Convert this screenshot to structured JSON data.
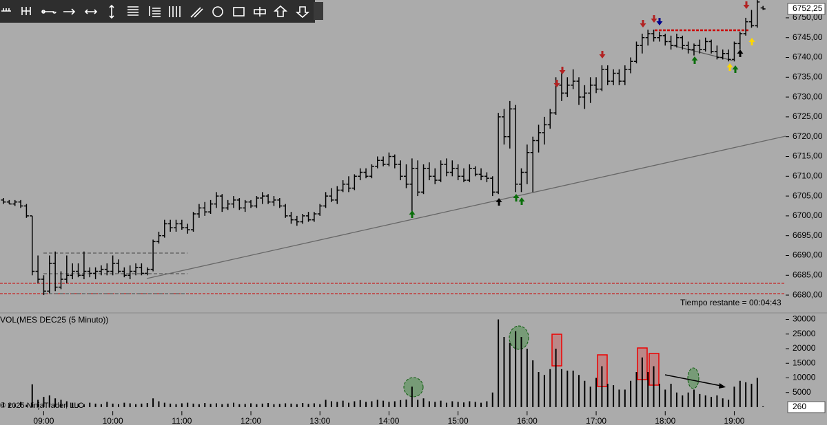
{
  "chart_data": {
    "type": "ohlc",
    "volume_title": "VOL(MES DEC25 (5 Minuto))",
    "timer": "Tiempo restante = 00:04:43",
    "copyright": "© 2025 NinjaTrader, LLC",
    "last_label": "6752,25",
    "x": [
      "08:25",
      "08:30",
      "08:35",
      "08:40",
      "08:45",
      "08:50",
      "08:55",
      "09:00",
      "09:05",
      "09:10",
      "09:15",
      "09:20",
      "09:25",
      "09:30",
      "09:35",
      "09:40",
      "09:45",
      "09:50",
      "09:55",
      "10:00",
      "10:05",
      "10:10",
      "10:15",
      "10:20",
      "10:25",
      "10:30",
      "10:35",
      "10:40",
      "10:45",
      "10:50",
      "10:55",
      "11:00",
      "11:05",
      "11:10",
      "11:15",
      "11:20",
      "11:25",
      "11:30",
      "11:35",
      "11:40",
      "11:45",
      "11:50",
      "11:55",
      "12:00",
      "12:05",
      "12:10",
      "12:15",
      "12:20",
      "12:25",
      "12:30",
      "12:35",
      "12:40",
      "12:45",
      "12:50",
      "12:55",
      "13:00",
      "13:05",
      "13:10",
      "13:15",
      "13:20",
      "13:25",
      "13:30",
      "13:35",
      "13:40",
      "13:45",
      "13:50",
      "13:55",
      "14:00",
      "14:05",
      "14:10",
      "14:15",
      "14:20",
      "14:25",
      "14:30",
      "14:35",
      "14:40",
      "14:45",
      "14:50",
      "14:55",
      "15:00",
      "15:05",
      "15:10",
      "15:15",
      "15:20",
      "15:25",
      "15:30",
      "15:35",
      "15:40",
      "15:45",
      "15:50",
      "15:55",
      "16:00",
      "16:05",
      "16:10",
      "16:15",
      "16:20",
      "16:25",
      "16:30",
      "16:35",
      "16:40",
      "16:45",
      "16:50",
      "16:55",
      "17:00",
      "17:05",
      "17:10",
      "17:15",
      "17:20",
      "17:25",
      "17:30",
      "17:35",
      "17:40",
      "17:45",
      "17:50",
      "17:55",
      "18:00",
      "18:05",
      "18:10",
      "18:15",
      "18:20",
      "18:25",
      "18:30",
      "18:35",
      "18:40",
      "18:45",
      "18:50",
      "18:55",
      "19:00",
      "19:05",
      "19:10",
      "19:15",
      "19:20",
      "19:25"
    ],
    "ohlc": [
      [
        6704,
        6704.5,
        6703,
        6703.5
      ],
      [
        6703.5,
        6704,
        6703,
        6703
      ],
      [
        6703,
        6704,
        6702.5,
        6703.5
      ],
      [
        6703.5,
        6704,
        6702,
        6702.5
      ],
      [
        6702.5,
        6703,
        6699.5,
        6700
      ],
      [
        6700,
        6700,
        6685,
        6686
      ],
      [
        6686,
        6690,
        6683,
        6684
      ],
      [
        6684,
        6685,
        6680,
        6681
      ],
      [
        6681,
        6690,
        6680.5,
        6688
      ],
      [
        6688,
        6691,
        6681,
        6682
      ],
      [
        6682,
        6686,
        6681.5,
        6684
      ],
      [
        6684,
        6690,
        6683,
        6685
      ],
      [
        6685,
        6688,
        6684,
        6686
      ],
      [
        6686,
        6688,
        6684.5,
        6685
      ],
      [
        6685,
        6691,
        6684,
        6686
      ],
      [
        6686,
        6687,
        6684.5,
        6685.5
      ],
      [
        6685.5,
        6687,
        6684,
        6686
      ],
      [
        6686,
        6687.5,
        6685,
        6686.5
      ],
      [
        6686.5,
        6688,
        6685,
        6686
      ],
      [
        6686,
        6690,
        6685,
        6688
      ],
      [
        6688,
        6689,
        6685.5,
        6686
      ],
      [
        6686,
        6687,
        6684.5,
        6685
      ],
      [
        6685,
        6687.5,
        6684,
        6686
      ],
      [
        6686,
        6688,
        6685,
        6687
      ],
      [
        6687,
        6688,
        6685,
        6685.5
      ],
      [
        6685.5,
        6687,
        6685,
        6686.5
      ],
      [
        6686.5,
        6694,
        6686,
        6693.5
      ],
      [
        6693.5,
        6696,
        6693,
        6695
      ],
      [
        6695,
        6699,
        6694.5,
        6698
      ],
      [
        6698,
        6699,
        6696,
        6697
      ],
      [
        6697,
        6699,
        6696,
        6698
      ],
      [
        6698,
        6699,
        6696.5,
        6697
      ],
      [
        6697,
        6698,
        6695.5,
        6696.5
      ],
      [
        6696.5,
        6701,
        6696,
        6700.5
      ],
      [
        6700.5,
        6703,
        6699.5,
        6702
      ],
      [
        6702,
        6703.5,
        6700,
        6701
      ],
      [
        6701,
        6704,
        6700.5,
        6703
      ],
      [
        6703,
        6706,
        6702,
        6705
      ],
      [
        6705,
        6705.5,
        6701,
        6702
      ],
      [
        6702,
        6704,
        6701.5,
        6703
      ],
      [
        6703,
        6705,
        6702,
        6704
      ],
      [
        6704,
        6704.5,
        6701.5,
        6702
      ],
      [
        6702,
        6704,
        6701,
        6703.5
      ],
      [
        6703.5,
        6704,
        6702,
        6702.5
      ],
      [
        6702.5,
        6705,
        6702,
        6704.5
      ],
      [
        6704.5,
        6706,
        6703,
        6705
      ],
      [
        6705,
        6705.5,
        6703,
        6703.5
      ],
      [
        6703.5,
        6705,
        6702.5,
        6704
      ],
      [
        6704,
        6704.5,
        6702,
        6702.5
      ],
      [
        6702.5,
        6703,
        6699.5,
        6700
      ],
      [
        6700,
        6701,
        6698,
        6699
      ],
      [
        6699,
        6700,
        6697.5,
        6698.5
      ],
      [
        6698.5,
        6700.5,
        6698,
        6700
      ],
      [
        6700,
        6701,
        6698.5,
        6699
      ],
      [
        6699,
        6701,
        6698.5,
        6700.5
      ],
      [
        6700.5,
        6703,
        6700,
        6702.5
      ],
      [
        6702.5,
        6706,
        6702,
        6705
      ],
      [
        6705,
        6707,
        6703.5,
        6704
      ],
      [
        6704,
        6707.5,
        6703,
        6706.5
      ],
      [
        6706.5,
        6709,
        6706,
        6708
      ],
      [
        6708,
        6710,
        6706,
        6707
      ],
      [
        6707,
        6710.5,
        6706.5,
        6710
      ],
      [
        6710,
        6712,
        6709,
        6711
      ],
      [
        6711,
        6712,
        6709.5,
        6710
      ],
      [
        6710,
        6713,
        6709.5,
        6712.5
      ],
      [
        6712.5,
        6715,
        6712,
        6714
      ],
      [
        6714,
        6715,
        6712.5,
        6713
      ],
      [
        6713,
        6716,
        6712.5,
        6715
      ],
      [
        6715,
        6715.5,
        6712,
        6713
      ],
      [
        6713,
        6714,
        6709,
        6710
      ],
      [
        6710,
        6713,
        6707,
        6708
      ],
      [
        6708,
        6714.5,
        6701,
        6712
      ],
      [
        6712,
        6714,
        6705,
        6706
      ],
      [
        6706,
        6713,
        6705.5,
        6712
      ],
      [
        6712,
        6713.5,
        6709,
        6710
      ],
      [
        6710,
        6712,
        6708,
        6709
      ],
      [
        6709,
        6714,
        6708.5,
        6713
      ],
      [
        6713,
        6714.5,
        6710,
        6711
      ],
      [
        6711,
        6714,
        6710,
        6712
      ],
      [
        6712,
        6713,
        6709,
        6710
      ],
      [
        6710,
        6712,
        6708.5,
        6709
      ],
      [
        6709,
        6713,
        6708.5,
        6712
      ],
      [
        6712,
        6712.5,
        6710,
        6710.5
      ],
      [
        6710.5,
        6712,
        6709,
        6710
      ],
      [
        6710,
        6711,
        6708.5,
        6709.5
      ],
      [
        6709.5,
        6710,
        6705,
        6706
      ],
      [
        6706,
        6726,
        6705.5,
        6725
      ],
      [
        6725,
        6727,
        6718,
        6720
      ],
      [
        6720,
        6729,
        6717,
        6727
      ],
      [
        6727,
        6728,
        6706,
        6708
      ],
      [
        6708,
        6712,
        6706,
        6711
      ],
      [
        6711,
        6718,
        6708,
        6716
      ],
      [
        6716,
        6720,
        6706,
        6719
      ],
      [
        6719,
        6723,
        6716,
        6721
      ],
      [
        6721,
        6725,
        6718,
        6723
      ],
      [
        6723,
        6727,
        6722,
        6726
      ],
      [
        6726,
        6735,
        6725.5,
        6733
      ],
      [
        6733,
        6736,
        6729,
        6731
      ],
      [
        6731,
        6735,
        6730,
        6733
      ],
      [
        6733,
        6737,
        6732,
        6734
      ],
      [
        6734,
        6735,
        6728,
        6730
      ],
      [
        6730,
        6733,
        6727,
        6731
      ],
      [
        6731,
        6735,
        6728.5,
        6733
      ],
      [
        6733,
        6735,
        6731,
        6732
      ],
      [
        6732,
        6738,
        6731.5,
        6737
      ],
      [
        6737,
        6738,
        6733,
        6734
      ],
      [
        6734,
        6737,
        6733,
        6736
      ],
      [
        6736,
        6737,
        6733,
        6734
      ],
      [
        6734,
        6738,
        6733,
        6737
      ],
      [
        6737,
        6740,
        6736,
        6739
      ],
      [
        6739,
        6744,
        6738.5,
        6743
      ],
      [
        6743,
        6746,
        6741,
        6745
      ],
      [
        6745,
        6747,
        6743,
        6746
      ],
      [
        6746,
        6747,
        6744,
        6745
      ],
      [
        6745,
        6746.5,
        6744,
        6745.5
      ],
      [
        6745.5,
        6746,
        6743,
        6744
      ],
      [
        6744,
        6745.5,
        6742,
        6743
      ],
      [
        6743,
        6746,
        6742.5,
        6745
      ],
      [
        6745,
        6745.5,
        6742,
        6743
      ],
      [
        6743,
        6744,
        6741,
        6742
      ],
      [
        6742,
        6743.5,
        6740.5,
        6743
      ],
      [
        6743,
        6744.5,
        6741,
        6742
      ],
      [
        6742,
        6745,
        6741.5,
        6744
      ],
      [
        6744,
        6744.5,
        6741,
        6741.5
      ],
      [
        6741.5,
        6743,
        6739.5,
        6740
      ],
      [
        6740,
        6742,
        6739.5,
        6741
      ],
      [
        6741,
        6742,
        6739,
        6739.5
      ],
      [
        6739.5,
        6744,
        6739,
        6743.5
      ],
      [
        6743.5,
        6746.5,
        6742,
        6746
      ],
      [
        6746,
        6750,
        6745.5,
        6749
      ],
      [
        6749,
        6752,
        6747.5,
        6748
      ],
      [
        6748,
        6756,
        6747.5,
        6754
      ],
      [
        6752.5,
        6753,
        6752,
        6752.25
      ]
    ],
    "volume": [
      1500,
      1200,
      1000,
      1800,
      800,
      7800,
      2500,
      3500,
      4000,
      3000,
      2500,
      2000,
      1500,
      1200,
      1000,
      1500,
      1200,
      1000,
      1800,
      1200,
      1000,
      1500,
      1300,
      1000,
      1200,
      1400,
      3000,
      2000,
      1500,
      1200,
      1000,
      1300,
      1500,
      1200,
      1000,
      1400,
      1100,
      1300,
      1000,
      1200,
      1500,
      1000,
      1100,
      1300,
      1000,
      1200,
      1400,
      1000,
      1100,
      1300,
      1200,
      1000,
      1400,
      1100,
      1300,
      1000,
      2500,
      2000,
      1800,
      2200,
      1500,
      2000,
      2400,
      1800,
      2000,
      2500,
      2200,
      1800,
      2000,
      2400,
      2600,
      7000,
      2500,
      3000,
      2000,
      1800,
      2200,
      1500,
      2000,
      1800,
      1600,
      2000,
      1800,
      1500,
      2000,
      5000,
      30000,
      24000,
      22000,
      26000,
      24000,
      20000,
      16000,
      12000,
      11000,
      13000,
      20000,
      13000,
      12500,
      12500,
      11000,
      9000,
      7000,
      10000,
      14000,
      8000,
      7500,
      6000,
      6000,
      9000,
      12000,
      17000,
      12000,
      14000,
      8000,
      6000,
      8000,
      5000,
      4000,
      5000,
      6000,
      4500,
      4000,
      3500,
      4000,
      3000,
      2500,
      7000,
      9000,
      8500,
      8000,
      10000,
      260
    ],
    "ylim": [
      6675.5,
      6754.5
    ],
    "yticks": [
      {
        "value": 6680,
        "label": "6680,00"
      },
      {
        "value": 6685,
        "label": "6685,00"
      },
      {
        "value": 6690,
        "label": "6690,00"
      },
      {
        "value": 6695,
        "label": "6695,00"
      },
      {
        "value": 6700,
        "label": "6700,00"
      },
      {
        "value": 6705,
        "label": "6705,00"
      },
      {
        "value": 6710,
        "label": "6710,00"
      },
      {
        "value": 6715,
        "label": "6715,00"
      },
      {
        "value": 6720,
        "label": "6720,00"
      },
      {
        "value": 6725,
        "label": "6725,00"
      },
      {
        "value": 6730,
        "label": "6730,00"
      },
      {
        "value": 6735,
        "label": "6735,00"
      },
      {
        "value": 6740,
        "label": "6740,00"
      },
      {
        "value": 6745,
        "label": "6745,00"
      },
      {
        "value": 6750,
        "label": "6750,00"
      }
    ],
    "y2lim": [
      0,
      32000
    ],
    "y2ticks": [
      5000,
      10000,
      15000,
      20000,
      25000,
      30000
    ],
    "xticks": [
      "09:00",
      "10:00",
      "11:00",
      "12:00",
      "13:00",
      "14:00",
      "15:00",
      "16:00",
      "17:00",
      "18:00",
      "19:00"
    ],
    "color": "#000000"
  }
}
